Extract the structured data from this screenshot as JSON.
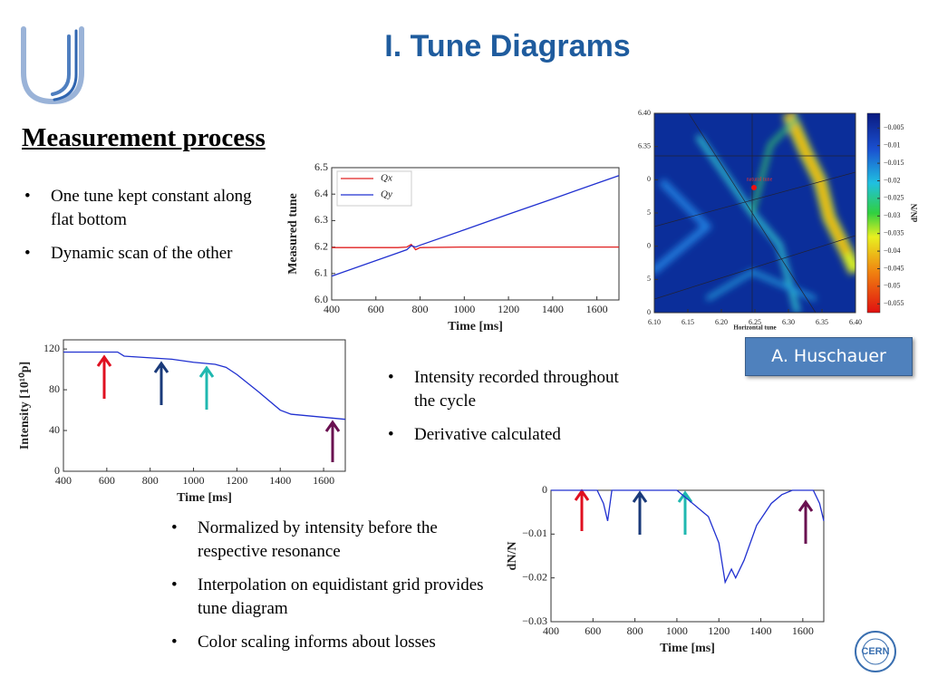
{
  "header": {
    "title": "I. Tune Diagrams"
  },
  "section": {
    "heading": "Measurement process"
  },
  "bullets_1": [
    "One tune kept constant along flat bottom",
    "Dynamic scan of the other"
  ],
  "bullets_2": [
    "Intensity recorded throughout the cycle",
    "Derivative calculated"
  ],
  "bullets_3": [
    "Normalized by intensity before the respective resonance",
    "Interpolation on equidistant grid provides tune diagram",
    "Color scaling informs about losses"
  ],
  "credit": "A. Huschauer",
  "logo": "CERN",
  "chart_data": [
    {
      "type": "line",
      "xlabel": "Time [ms]",
      "ylabel": "Measured tune",
      "x": [
        400,
        700,
        740,
        760,
        780,
        800,
        1000,
        1200,
        1400,
        1600,
        1700
      ],
      "series": [
        {
          "name": "Qx",
          "color": "#e02020",
          "values": [
            6.198,
            6.198,
            6.2,
            6.21,
            6.19,
            6.198,
            6.2,
            6.2,
            6.2,
            6.2,
            6.2
          ]
        },
        {
          "name": "Qy",
          "color": "#2030d0",
          "values": [
            6.09,
            6.178,
            6.19,
            6.205,
            6.2,
            6.207,
            6.265,
            6.324,
            6.382,
            6.441,
            6.47
          ]
        }
      ],
      "xlim": [
        400,
        1700
      ],
      "xticks": [
        400,
        600,
        800,
        1000,
        1200,
        1400,
        1600
      ],
      "ylim": [
        6.0,
        6.5
      ],
      "yticks": [
        {
          "value": 6.0,
          "label": "6.0"
        },
        6.1,
        6.2,
        6.3,
        6.4,
        6.5
      ],
      "legend": "upper-left"
    },
    {
      "type": "line",
      "xlabel": "Time [ms]",
      "ylabel": "Intensity [10¹⁰p]",
      "x": [
        400,
        650,
        680,
        900,
        1000,
        1100,
        1150,
        1200,
        1300,
        1400,
        1450,
        1600,
        1700
      ],
      "values": [
        117,
        117,
        113,
        110,
        107,
        105,
        102,
        95,
        78,
        60,
        56,
        53,
        51
      ],
      "color": "#2030d0",
      "xlim": [
        400,
        1700
      ],
      "xticks": [
        400,
        600,
        800,
        1000,
        1200,
        1400,
        1600
      ],
      "ylim": [
        0,
        129
      ],
      "yticks": [
        0,
        40,
        80,
        120
      ]
    },
    {
      "type": "line",
      "xlabel": "Time [ms]",
      "ylabel": "dN/N",
      "x": [
        400,
        620,
        650,
        670,
        690,
        900,
        1000,
        1050,
        1150,
        1200,
        1230,
        1260,
        1280,
        1320,
        1380,
        1450,
        1500,
        1550,
        1650,
        1680,
        1700
      ],
      "values": [
        0,
        0,
        -0.003,
        -0.007,
        0,
        0,
        0,
        -0.002,
        -0.006,
        -0.012,
        -0.021,
        -0.018,
        -0.02,
        -0.016,
        -0.008,
        -0.003,
        -0.001,
        0,
        0,
        -0.003,
        -0.007
      ],
      "color": "#2030d0",
      "xlim": [
        400,
        1700
      ],
      "xticks": [
        400,
        600,
        800,
        1000,
        1200,
        1400,
        1600
      ],
      "ylim": [
        -0.03,
        0
      ],
      "yticks": [
        0,
        {
          "value": -0.01,
          "label": "−0.01"
        },
        {
          "value": -0.02,
          "label": "−0.02"
        },
        {
          "value": -0.03,
          "label": "−0.03"
        }
      ]
    },
    {
      "type": "heatmap",
      "xlabel": "Horizontal tune",
      "colorbar_label": "dN/N",
      "annotation": "natural tune",
      "xlim": [
        6.1,
        6.4
      ],
      "xticks": [
        {
          "value": 6.1,
          "label": "6.10"
        },
        6.15,
        {
          "value": 6.2,
          "label": "6.20"
        },
        6.25,
        {
          "value": 6.3,
          "label": "6.30"
        },
        6.35,
        {
          "value": 6.4,
          "label": "6.40"
        }
      ],
      "ylim": [
        6.1,
        6.4
      ],
      "yticks": [
        {
          "value": 6.4,
          "label": "6.40"
        },
        6.35,
        {
          "value": 6.3,
          "label": "0"
        },
        {
          "value": 6.25,
          "label": "5"
        },
        {
          "value": 6.2,
          "label": "0"
        },
        {
          "value": 6.15,
          "label": "5"
        },
        {
          "value": 6.1,
          "label": "0"
        }
      ],
      "clim": [
        -0.0575,
        -0.0008
      ],
      "cticks": [
        {
          "value": -0.005,
          "label": "−0.005"
        },
        {
          "value": -0.01,
          "label": "−0.01"
        },
        {
          "value": -0.015,
          "label": "−0.015"
        },
        {
          "value": -0.02,
          "label": "−0.02"
        },
        {
          "value": -0.025,
          "label": "−0.025"
        },
        {
          "value": -0.03,
          "label": "−0.03"
        },
        {
          "value": -0.035,
          "label": "−0.035"
        },
        {
          "value": -0.04,
          "label": "−0.04"
        },
        {
          "value": -0.045,
          "label": "−0.045"
        },
        {
          "value": -0.05,
          "label": "−0.05"
        },
        {
          "value": -0.055,
          "label": "−0.055"
        }
      ]
    }
  ]
}
